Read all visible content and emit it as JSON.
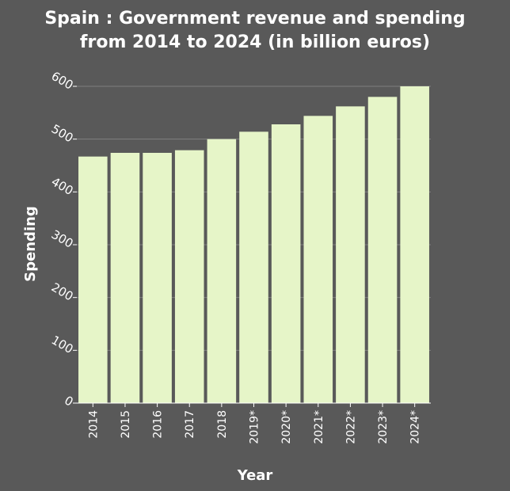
{
  "chart_data": {
    "type": "bar",
    "title": "Spain : Government revenue and spending from 2014 to 2024 (in billion euros)",
    "title_lines": [
      "Spain : Government revenue and spending",
      "from 2014 to 2024 (in billion euros)"
    ],
    "xlabel": "Year",
    "ylabel": "Spending",
    "categories": [
      "2014",
      "2015",
      "2016",
      "2017",
      "2018",
      "2019*",
      "2020*",
      "2021*",
      "2022*",
      "2023*",
      "2024*"
    ],
    "values": [
      467,
      474,
      474,
      479,
      500,
      514,
      528,
      544,
      562,
      580,
      600
    ],
    "ylim": [
      0,
      600
    ],
    "yticks": [
      "0",
      "100",
      "200",
      "300",
      "400",
      "500",
      "600"
    ],
    "grid": true,
    "bar_color": "#e6f5c8",
    "background_color": "#595959",
    "grid_color": "#808080"
  }
}
